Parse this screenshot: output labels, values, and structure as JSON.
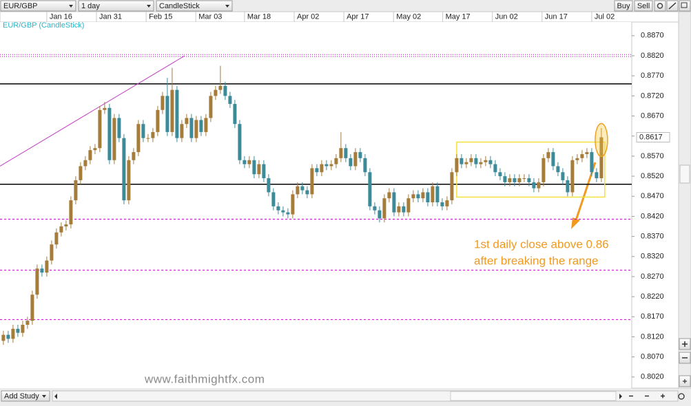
{
  "toolbar": {
    "symbol": "EUR/GBP",
    "interval": "1 day",
    "chart_style": "CandleStick",
    "buy": "Buy",
    "sell": "Sell"
  },
  "chart_data": {
    "type": "candlestick",
    "subtitle": "EUR/GBP (CandleStick)",
    "open": [
      0.811,
      0.8125,
      0.8115,
      0.814,
      0.813,
      0.815,
      0.816,
      0.8225,
      0.829,
      0.828,
      0.831,
      0.835,
      0.838,
      0.8395,
      0.84,
      0.846,
      0.851,
      0.8545,
      0.856,
      0.8585,
      0.859,
      0.8685,
      0.869,
      0.856,
      0.8665,
      0.8615,
      0.846,
      0.856,
      0.858,
      0.865,
      0.8615,
      0.8615,
      0.863,
      0.8685,
      0.872,
      0.863,
      0.8735,
      0.8615,
      0.865,
      0.8665,
      0.8615,
      0.866,
      0.863,
      0.8665,
      0.872,
      0.8735,
      0.8745,
      0.872,
      0.87,
      0.865,
      0.856,
      0.855,
      0.856,
      0.8525,
      0.855,
      0.8515,
      0.848,
      0.8445,
      0.8435,
      0.843,
      0.8425,
      0.8475,
      0.8495,
      0.8485,
      0.8475,
      0.854,
      0.853,
      0.855,
      0.8545,
      0.855,
      0.8565,
      0.859,
      0.8565,
      0.8545,
      0.858,
      0.8565,
      0.853,
      0.8445,
      0.8435,
      0.8415,
      0.8465,
      0.848,
      0.843,
      0.8445,
      0.843,
      0.8465,
      0.8475,
      0.8465,
      0.848,
      0.8455,
      0.8495,
      0.8455,
      0.8445,
      0.846,
      0.853,
      0.8565,
      0.855,
      0.8555,
      0.8565,
      0.855,
      0.8555,
      0.856,
      0.855,
      0.853,
      0.852,
      0.8505,
      0.8515,
      0.8505,
      0.8515,
      0.8515,
      0.8505,
      0.849,
      0.8505,
      0.8565,
      0.858,
      0.8545,
      0.853,
      0.851,
      0.848,
      0.856,
      0.8565,
      0.8575,
      0.858,
      0.853,
      0.8515
    ],
    "high": [
      0.8135,
      0.8135,
      0.815,
      0.815,
      0.816,
      0.817,
      0.8235,
      0.83,
      0.83,
      0.832,
      0.836,
      0.839,
      0.8405,
      0.841,
      0.847,
      0.852,
      0.8555,
      0.857,
      0.8595,
      0.86,
      0.8695,
      0.8705,
      0.87,
      0.8675,
      0.8675,
      0.8625,
      0.857,
      0.859,
      0.866,
      0.866,
      0.8625,
      0.864,
      0.8695,
      0.873,
      0.8765,
      0.879,
      0.8745,
      0.866,
      0.8675,
      0.8675,
      0.867,
      0.867,
      0.8675,
      0.873,
      0.8745,
      0.8795,
      0.8755,
      0.873,
      0.871,
      0.866,
      0.857,
      0.857,
      0.857,
      0.856,
      0.856,
      0.8525,
      0.849,
      0.8455,
      0.8445,
      0.844,
      0.8485,
      0.8505,
      0.8505,
      0.8495,
      0.855,
      0.855,
      0.856,
      0.856,
      0.856,
      0.8575,
      0.863,
      0.86,
      0.8575,
      0.859,
      0.859,
      0.8575,
      0.854,
      0.8455,
      0.8445,
      0.8475,
      0.849,
      0.849,
      0.8455,
      0.8455,
      0.8475,
      0.8485,
      0.8485,
      0.849,
      0.849,
      0.8505,
      0.8505,
      0.8465,
      0.847,
      0.854,
      0.8575,
      0.8575,
      0.8565,
      0.8575,
      0.8575,
      0.8565,
      0.857,
      0.857,
      0.856,
      0.854,
      0.853,
      0.8525,
      0.8525,
      0.8525,
      0.8525,
      0.8525,
      0.8515,
      0.8515,
      0.8575,
      0.859,
      0.859,
      0.8555,
      0.854,
      0.852,
      0.857,
      0.8575,
      0.8585,
      0.859,
      0.859,
      0.854,
      0.864
    ],
    "low": [
      0.81,
      0.8105,
      0.8105,
      0.812,
      0.812,
      0.814,
      0.815,
      0.8215,
      0.827,
      0.827,
      0.83,
      0.834,
      0.837,
      0.8385,
      0.839,
      0.845,
      0.85,
      0.8535,
      0.855,
      0.8575,
      0.858,
      0.8675,
      0.855,
      0.855,
      0.8605,
      0.845,
      0.845,
      0.855,
      0.857,
      0.8605,
      0.8605,
      0.8605,
      0.862,
      0.8675,
      0.862,
      0.862,
      0.8605,
      0.8605,
      0.864,
      0.8605,
      0.8605,
      0.862,
      0.862,
      0.8655,
      0.871,
      0.8725,
      0.871,
      0.869,
      0.864,
      0.855,
      0.854,
      0.854,
      0.8515,
      0.8515,
      0.8505,
      0.847,
      0.8435,
      0.8425,
      0.842,
      0.8415,
      0.8415,
      0.8465,
      0.8475,
      0.8465,
      0.8465,
      0.852,
      0.852,
      0.8535,
      0.8535,
      0.854,
      0.8555,
      0.8555,
      0.8535,
      0.8535,
      0.8555,
      0.852,
      0.8435,
      0.8425,
      0.8405,
      0.8405,
      0.8455,
      0.842,
      0.842,
      0.842,
      0.842,
      0.8455,
      0.8455,
      0.8455,
      0.8445,
      0.8445,
      0.8445,
      0.8435,
      0.8435,
      0.845,
      0.852,
      0.854,
      0.854,
      0.8545,
      0.854,
      0.854,
      0.8545,
      0.854,
      0.852,
      0.851,
      0.8495,
      0.8495,
      0.8495,
      0.8495,
      0.8505,
      0.8495,
      0.848,
      0.848,
      0.8495,
      0.8555,
      0.8535,
      0.852,
      0.85,
      0.847,
      0.847,
      0.855,
      0.8555,
      0.8565,
      0.852,
      0.8505,
      0.8505
    ],
    "close": [
      0.8125,
      0.8115,
      0.814,
      0.813,
      0.815,
      0.816,
      0.8225,
      0.829,
      0.828,
      0.831,
      0.835,
      0.838,
      0.8395,
      0.84,
      0.846,
      0.851,
      0.8545,
      0.856,
      0.8585,
      0.859,
      0.8685,
      0.869,
      0.856,
      0.8665,
      0.8615,
      0.846,
      0.856,
      0.858,
      0.865,
      0.8615,
      0.8615,
      0.863,
      0.8685,
      0.872,
      0.863,
      0.8735,
      0.8615,
      0.865,
      0.8665,
      0.8615,
      0.866,
      0.863,
      0.8665,
      0.872,
      0.8735,
      0.8745,
      0.872,
      0.87,
      0.865,
      0.856,
      0.855,
      0.856,
      0.8525,
      0.855,
      0.8515,
      0.848,
      0.8445,
      0.8435,
      0.843,
      0.8425,
      0.8475,
      0.8495,
      0.8485,
      0.8475,
      0.854,
      0.853,
      0.855,
      0.8545,
      0.855,
      0.8565,
      0.859,
      0.8565,
      0.8545,
      0.858,
      0.8565,
      0.853,
      0.8445,
      0.8435,
      0.8415,
      0.8465,
      0.848,
      0.843,
      0.8445,
      0.843,
      0.8465,
      0.8475,
      0.8465,
      0.848,
      0.8455,
      0.8495,
      0.8455,
      0.8445,
      0.846,
      0.853,
      0.8565,
      0.855,
      0.8555,
      0.8565,
      0.855,
      0.8555,
      0.856,
      0.855,
      0.853,
      0.852,
      0.8505,
      0.8515,
      0.8505,
      0.8515,
      0.8515,
      0.8505,
      0.849,
      0.8505,
      0.8565,
      0.858,
      0.8545,
      0.853,
      0.851,
      0.848,
      0.856,
      0.8565,
      0.8575,
      0.858,
      0.853,
      0.8515,
      0.8617
    ],
    "up_color": "#a57c3a",
    "down_color": "#3d8b98",
    "last_close_label": "0.8617",
    "xlim": [
      -0.7,
      130.3
    ],
    "xticks": [
      {
        "value": 9,
        "label": "Jan 16"
      },
      {
        "value": 19.3,
        "label": "Jan 31"
      },
      {
        "value": 29.6,
        "label": "Feb 15"
      },
      {
        "value": 39.9,
        "label": "Mar 03"
      },
      {
        "value": 50,
        "label": "Mar 18"
      },
      {
        "value": 60.3,
        "label": "Apr 02"
      },
      {
        "value": 70.6,
        "label": "Apr 17"
      },
      {
        "value": 80.9,
        "label": "May 02"
      },
      {
        "value": 91.1,
        "label": "May 17"
      },
      {
        "value": 101.4,
        "label": "Jun 02"
      },
      {
        "value": 111.7,
        "label": "Jun 17"
      },
      {
        "value": 122,
        "label": "Jul 02"
      }
    ],
    "ylim": [
      0.7994,
      0.8928
    ],
    "yticks": [
      {
        "value": 0.887,
        "label": "0.8870"
      },
      {
        "value": 0.882,
        "label": "0.8820"
      },
      {
        "value": 0.877,
        "label": "0.8770"
      },
      {
        "value": 0.872,
        "label": "0.8720"
      },
      {
        "value": 0.867,
        "label": "0.8670"
      },
      {
        "value": 0.862,
        "label": "0.8620"
      },
      {
        "value": 0.857,
        "label": "0.8570"
      },
      {
        "value": 0.852,
        "label": "0.8520"
      },
      {
        "value": 0.847,
        "label": "0.8470"
      },
      {
        "value": 0.842,
        "label": "0.8420"
      },
      {
        "value": 0.837,
        "label": "0.8370"
      },
      {
        "value": 0.832,
        "label": "0.8320"
      },
      {
        "value": 0.827,
        "label": "0.8270"
      },
      {
        "value": 0.822,
        "label": "0.8220"
      },
      {
        "value": 0.817,
        "label": "0.8170"
      },
      {
        "value": 0.812,
        "label": "0.8120"
      },
      {
        "value": 0.807,
        "label": "0.8070"
      },
      {
        "value": 0.802,
        "label": "0.8020"
      }
    ],
    "levels": [
      {
        "value": 0.875,
        "color": "#000000",
        "style": "solid"
      },
      {
        "value": 0.85,
        "color": "#000000",
        "style": "solid"
      },
      {
        "value": 0.8823,
        "color": "#c000c0",
        "style": "dotted"
      },
      {
        "value": 0.8818,
        "color": "#c000c0",
        "style": "dotted"
      },
      {
        "value": 0.8413,
        "color": "#c000c0",
        "style": "dashed"
      },
      {
        "value": 0.8286,
        "color": "#c000c0",
        "style": "dashed"
      },
      {
        "value": 0.8163,
        "color": "#c000c0",
        "style": "dashed"
      }
    ],
    "trend_line": {
      "x": [
        -0.7,
        37.6
      ],
      "y": [
        0.8545,
        0.882
      ],
      "color": "#c040c0"
    },
    "range_box": {
      "x": [
        94,
        124.7
      ],
      "y": [
        0.8468,
        0.8605
      ],
      "color": "#f2e23a"
    },
    "annotation": [
      "1st daily close above 0.86",
      "after breaking the range"
    ],
    "annotation_color": "#f09a20"
  },
  "watermark": "www.faithmightfx.com",
  "footer": {
    "add_study": "Add Study"
  }
}
